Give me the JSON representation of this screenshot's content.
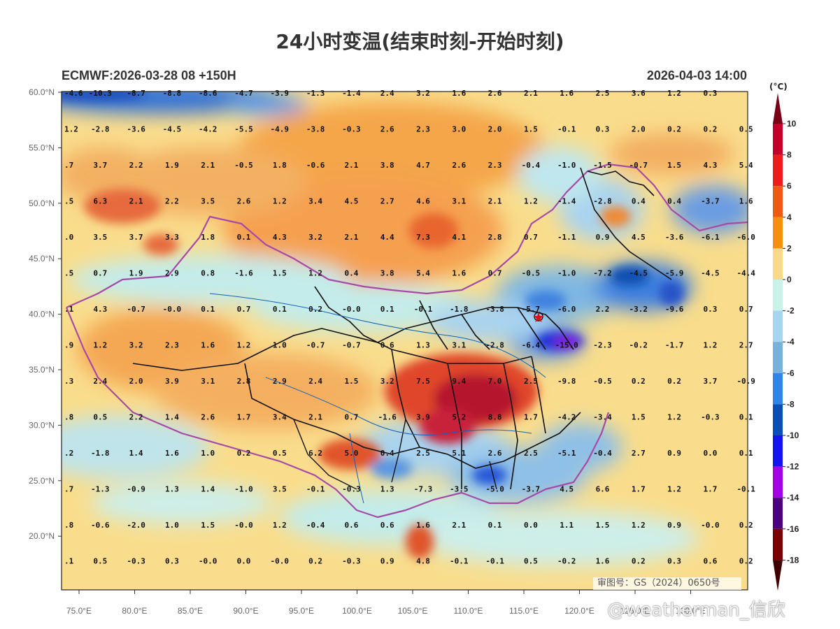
{
  "title": "24小时变温(结束时刻-开始时刻)",
  "model_run": "ECMWF:2026-03-28 08 +150H",
  "valid_time": "2026-04-03 14:00",
  "unit": "(°C)",
  "stamp": "审图号：GS（2024）0650号",
  "watermark": "@weatherman_信欣",
  "lat_ticks": [
    "60.0°N",
    "55.0°N",
    "50.0°N",
    "45.0°N",
    "40.0°N",
    "35.0°N",
    "30.0°N",
    "25.0°N",
    "20.0°N"
  ],
  "lon_ticks": [
    "75.0°E",
    "80.0°E",
    "85.0°E",
    "90.0°E",
    "95.0°E",
    "100.0°E",
    "105.0°E",
    "110.0°E",
    "115.0°E",
    "120.0°E",
    "125.0°E",
    "130.0°E"
  ],
  "colorbar": {
    "labels": [
      "10",
      "8",
      "6",
      "4",
      "2",
      "0",
      "-2",
      "-4",
      "-6",
      "-8",
      "-10",
      "-12",
      "-14",
      "-16",
      "-18"
    ],
    "colors": [
      "#7a0018",
      "#c4002a",
      "#ee1c1c",
      "#ee5a14",
      "#f7900f",
      "#fbd98a",
      "#c8f3e6",
      "#a5d5ef",
      "#78b2db",
      "#2f86e8",
      "#0a4fb5",
      "#1414f0",
      "#a400e8",
      "#4b0080",
      "#7a0000",
      "#400000"
    ]
  },
  "markers": [
    {
      "name": "beijing-star",
      "symbol": "★",
      "color": "#e01010"
    }
  ],
  "grid_values": [
    [
      "-4.6",
      "-10.3",
      "-8.7",
      "-8.8",
      "-8.6",
      "-4.7",
      "-3.9",
      "-1.3",
      "-1.4",
      "2.4",
      "3.2",
      "1.6",
      "2.6",
      "2.1",
      "1.6",
      "2.5",
      "3.6",
      "1.2",
      "0.3"
    ],
    [
      "1.2",
      "-2.8",
      "-3.6",
      "-4.5",
      "-4.2",
      "-5.5",
      "-4.9",
      "-3.8",
      "-0.3",
      "2.6",
      "2.3",
      "3.0",
      "2.0",
      "1.5",
      "-0.1",
      "0.3",
      "2.0",
      "0.2",
      "0.2",
      "0.5"
    ],
    [
      ".7",
      "3.7",
      "2.2",
      "1.9",
      "2.1",
      "-0.5",
      "1.8",
      "-0.6",
      "2.1",
      "3.8",
      "4.7",
      "2.6",
      "2.3",
      "-0.4",
      "-1.0",
      "-1.5",
      "-0.7",
      "1.5",
      "4.3",
      "5.4"
    ],
    [
      ".5",
      "6.3",
      "2.1",
      "2.2",
      "3.5",
      "2.6",
      "1.2",
      "3.4",
      "4.5",
      "2.7",
      "4.6",
      "3.1",
      "2.1",
      "1.2",
      "-1.4",
      "-2.8",
      "0.4",
      "0.4",
      "-3.7",
      "1.6"
    ],
    [
      ".0",
      "3.5",
      "3.7",
      "3.3",
      "1.8",
      "0.1",
      "4.3",
      "3.2",
      "2.1",
      "4.4",
      "7.3",
      "4.1",
      "2.8",
      "0.7",
      "-1.1",
      "0.9",
      "4.5",
      "-3.6",
      "-6.1",
      "-6.0"
    ],
    [
      ".5",
      "0.7",
      "1.9",
      "2.9",
      "0.8",
      "-1.6",
      "1.5",
      "1.2",
      "0.4",
      "3.8",
      "5.4",
      "1.6",
      "0.7",
      "-0.5",
      "-1.0",
      "-7.2",
      "-4.5",
      "-5.9",
      "-4.5",
      "-4.4"
    ],
    [
      ".1",
      "4.3",
      "-0.7",
      "-0.0",
      "0.1",
      "0.7",
      "0.1",
      "0.2",
      "-0.0",
      "0.1",
      "-0.1",
      "-1.8",
      "-3.8",
      "-5.7",
      "-6.0",
      "2.2",
      "-3.2",
      "-9.6",
      "0.3",
      "0.7"
    ],
    [
      ".9",
      "1.2",
      "3.2",
      "2.3",
      "1.6",
      "1.2",
      "1.0",
      "-0.7",
      "-0.7",
      "0.6",
      "1.3",
      "3.1",
      "-2.8",
      "-6.4",
      "-15.0",
      "-2.3",
      "-0.2",
      "-1.7",
      "1.2",
      "2.7"
    ],
    [
      ".3",
      "2.4",
      "2.0",
      "3.9",
      "3.1",
      "2.8",
      "2.9",
      "2.4",
      "1.5",
      "3.2",
      "7.5",
      "9.4",
      "7.0",
      "2.5",
      "-9.8",
      "-0.5",
      "0.2",
      "0.2",
      "3.7",
      "-0.9"
    ],
    [
      ".8",
      "0.5",
      "2.2",
      "1.4",
      "2.6",
      "1.7",
      "3.4",
      "2.1",
      "0.7",
      "-1.6",
      "3.9",
      "5.2",
      "8.8",
      "1.7",
      "-4.2",
      "-3.4",
      "1.5",
      "1.2",
      "-0.3",
      "0.1"
    ],
    [
      ".2",
      "-1.8",
      "1.4",
      "1.6",
      "1.0",
      "0.2",
      "0.5",
      "6.2",
      "5.0",
      "0.4",
      "2.5",
      "5.1",
      "2.6",
      "2.5",
      "-5.1",
      "-0.4",
      "2.7",
      "0.9",
      "0.0",
      "0.1"
    ],
    [
      ".7",
      "-1.3",
      "-0.9",
      "1.3",
      "1.4",
      "-1.0",
      "3.5",
      "-0.1",
      "-0.3",
      "1.3",
      "-7.3",
      "-3.5",
      "-5.0",
      "-3.7",
      "4.5",
      "6.6",
      "1.7",
      "1.2",
      "1.7",
      "-0.1"
    ],
    [
      ".8",
      "-0.6",
      "-2.0",
      "1.0",
      "1.5",
      "-0.0",
      "1.2",
      "-0.4",
      "0.6",
      "0.6",
      "1.6",
      "2.1",
      "0.1",
      "0.0",
      "1.1",
      "1.5",
      "1.2",
      "0.9",
      "-0.0",
      "0.2"
    ],
    [
      ".1",
      "0.5",
      "-0.3",
      "0.3",
      "-0.0",
      "0.0",
      "-0.0",
      "0.2",
      "-0.3",
      "0.9",
      "4.8",
      "-0.1",
      "-0.1",
      "0.5",
      "-0.2",
      "1.6",
      "0.2",
      "0.3",
      "0.6",
      "0.2"
    ]
  ]
}
